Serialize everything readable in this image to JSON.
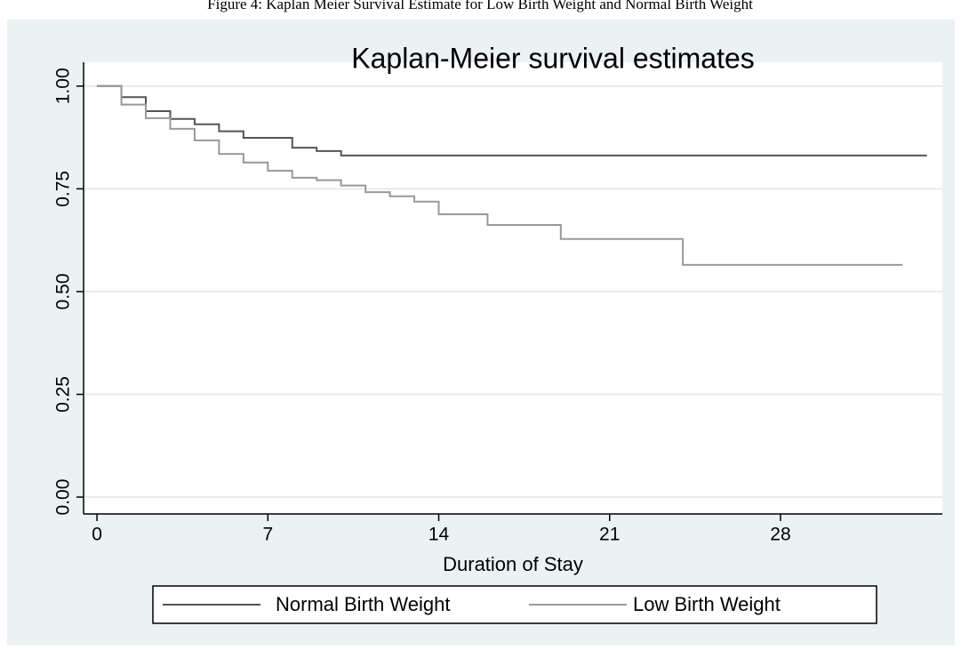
{
  "caption": "Figure 4: Kaplan Meier Survival Estimate for Low Birth Weight and Normal Birth Weight",
  "chart_data": {
    "type": "line",
    "step": "post",
    "title": "Kaplan-Meier survival estimates",
    "x_label": "Duration of Stay",
    "xlim": [
      -0.55,
      34.63
    ],
    "xticks": [
      0,
      7,
      14,
      21,
      28
    ],
    "ylim": [
      -0.041,
      1.058
    ],
    "yticks": [
      {
        "value": 0,
        "label": "0.00"
      },
      0.25,
      {
        "value": 0.5,
        "label": "0.50"
      },
      0.75,
      {
        "value": 1,
        "label": "1.00"
      }
    ],
    "grid": true,
    "series": [
      {
        "name": "Normal Birth Weight",
        "color": "#555555",
        "x": [
          0,
          1,
          2,
          3,
          4,
          5,
          6,
          8,
          9,
          10,
          34
        ],
        "values": [
          1.0,
          0.973,
          0.939,
          0.92,
          0.907,
          0.89,
          0.874,
          0.85,
          0.842,
          0.831,
          0.831
        ]
      },
      {
        "name": "Low Birth Weight",
        "color": "#999999",
        "x": [
          0,
          1,
          2,
          3,
          4,
          5,
          6,
          7,
          8,
          9,
          10,
          11,
          12,
          13,
          14,
          16,
          19,
          24,
          33
        ],
        "values": [
          1.0,
          0.955,
          0.922,
          0.896,
          0.868,
          0.835,
          0.814,
          0.794,
          0.777,
          0.771,
          0.758,
          0.742,
          0.732,
          0.719,
          0.688,
          0.662,
          0.628,
          0.565,
          0.565
        ]
      }
    ]
  }
}
